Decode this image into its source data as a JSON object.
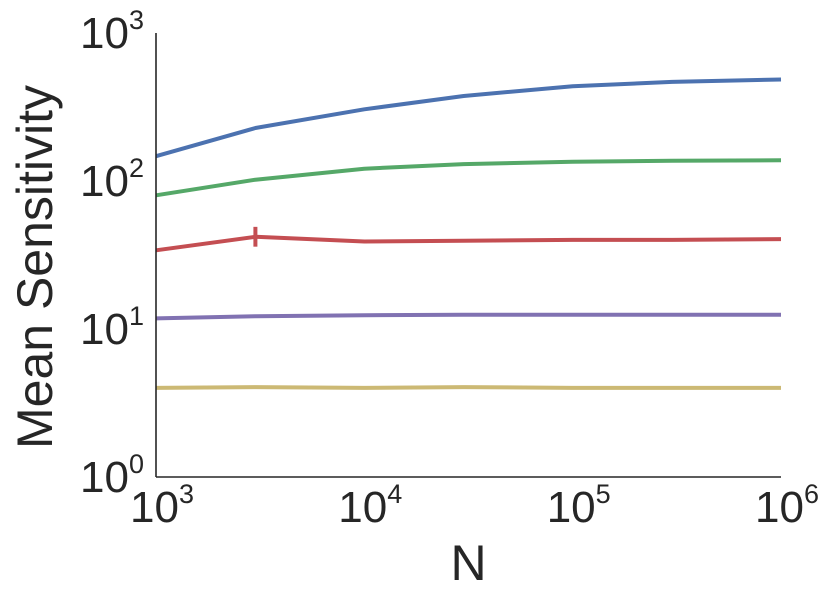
{
  "chart_data": {
    "type": "line",
    "xlabel": "N",
    "ylabel": "Mean Sensitivity",
    "xscale": "log",
    "yscale": "log",
    "xlim": [
      1000,
      1000000
    ],
    "ylim": [
      1,
      1000
    ],
    "xticks": [
      {
        "value": 1000,
        "base": "10",
        "exp": "3"
      },
      {
        "value": 10000,
        "base": "10",
        "exp": "4"
      },
      {
        "value": 100000,
        "base": "10",
        "exp": "5"
      },
      {
        "value": 1000000,
        "base": "10",
        "exp": "6"
      }
    ],
    "yticks": [
      {
        "value": 1,
        "base": "10",
        "exp": "0"
      },
      {
        "value": 10,
        "base": "10",
        "exp": "1"
      },
      {
        "value": 100,
        "base": "10",
        "exp": "2"
      },
      {
        "value": 1000,
        "base": "10",
        "exp": "3"
      }
    ],
    "grid": false,
    "x": [
      1000,
      3000,
      10000,
      30000,
      100000,
      300000,
      1000000
    ],
    "series": [
      {
        "color": "#4c72b0",
        "values": [
          147,
          228,
          305,
          375,
          437,
          467,
          485
        ]
      },
      {
        "color": "#55a868",
        "values": [
          80,
          102,
          121,
          130,
          135,
          137,
          138
        ]
      },
      {
        "color": "#c44e52",
        "values": [
          34,
          42,
          39,
          39.5,
          40,
          40,
          40.5
        ],
        "error_bars": [
          {
            "x": 3000,
            "low": 36,
            "high": 49
          }
        ]
      },
      {
        "color": "#8172b2",
        "values": [
          11.8,
          12.2,
          12.4,
          12.5,
          12.5,
          12.5,
          12.5
        ]
      },
      {
        "color": "#ccb974",
        "values": [
          4.0,
          4.05,
          4.0,
          4.05,
          4.0,
          4.0,
          4.0
        ]
      }
    ]
  }
}
